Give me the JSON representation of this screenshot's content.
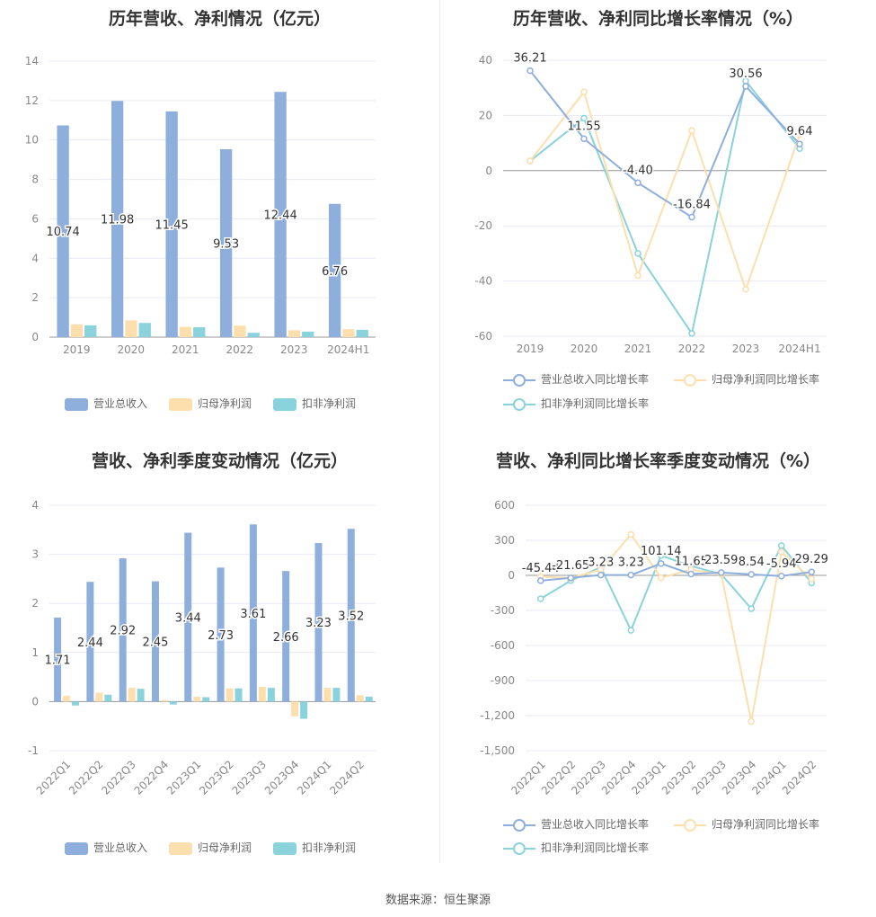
{
  "source_text": "数据来源：恒生聚源",
  "colors": {
    "revenue": "#8eaedc",
    "netprofit": "#fddfae",
    "deducted": "#8ad3dc",
    "grid": "#e8eaf4",
    "axis_text": "#888888",
    "label_text": "#333333"
  },
  "chart_data": [
    {
      "type": "bar",
      "title": "历年营收、净利情况（亿元）",
      "categories": [
        "2019",
        "2020",
        "2021",
        "2022",
        "2023",
        "2024H1"
      ],
      "series": [
        {
          "name": "营业总收入",
          "values": [
            10.74,
            11.98,
            11.45,
            9.53,
            12.44,
            6.76
          ],
          "labels": [
            "10.74",
            "11.98",
            "11.45",
            "9.53",
            "12.44",
            "6.76"
          ]
        },
        {
          "name": "归母净利润",
          "values": [
            0.65,
            0.85,
            0.52,
            0.58,
            0.35,
            0.4
          ]
        },
        {
          "name": "扣非净利润",
          "values": [
            0.6,
            0.72,
            0.5,
            0.22,
            0.28,
            0.37
          ]
        }
      ],
      "ylim": [
        0,
        14
      ],
      "yticks": [
        "0",
        "2",
        "4",
        "6",
        "8",
        "10",
        "12",
        "14"
      ],
      "legend": "bottom"
    },
    {
      "type": "line",
      "title": "历年营收、净利同比增长率情况（%）",
      "categories": [
        "2019",
        "2020",
        "2021",
        "2022",
        "2023",
        "2024H1"
      ],
      "series": [
        {
          "name": "营业总收入同比增长率",
          "values": [
            36.21,
            11.55,
            -4.4,
            -16.84,
            30.56,
            9.64
          ],
          "labels": [
            "36.21",
            "11.55",
            "-4.40",
            "-16.84",
            "30.56",
            "9.64"
          ]
        },
        {
          "name": "归母净利润同比增长率",
          "values": [
            3.5,
            28.5,
            -38,
            14.5,
            -43,
            13
          ]
        },
        {
          "name": "扣非净利润同比增长率",
          "values": [
            3.5,
            19,
            -30,
            -59,
            32.5,
            8
          ]
        }
      ],
      "ylim": [
        -60,
        40
      ],
      "yticks": [
        "40",
        "20",
        "0",
        "-20",
        "-40",
        "-60"
      ],
      "legend": "bottom"
    },
    {
      "type": "bar",
      "title": "营收、净利季度变动情况（亿元）",
      "categories": [
        "2022Q1",
        "2022Q2",
        "2022Q3",
        "2022Q4",
        "2023Q1",
        "2023Q2",
        "2023Q3",
        "2023Q4",
        "2024Q1",
        "2024Q2"
      ],
      "series": [
        {
          "name": "营业总收入",
          "values": [
            1.71,
            2.44,
            2.92,
            2.45,
            3.44,
            2.73,
            3.61,
            2.66,
            3.23,
            3.52
          ],
          "labels": [
            "1.71",
            "2.44",
            "2.92",
            "2.45",
            "3.44",
            "2.73",
            "3.61",
            "2.66",
            "3.23",
            "3.52"
          ]
        },
        {
          "name": "归母净利润",
          "values": [
            0.12,
            0.18,
            0.28,
            0.03,
            0.1,
            0.27,
            0.3,
            -0.3,
            0.28,
            0.13
          ]
        },
        {
          "name": "扣非净利润",
          "values": [
            -0.08,
            0.14,
            0.26,
            -0.06,
            0.09,
            0.27,
            0.28,
            -0.35,
            0.28,
            0.1
          ]
        }
      ],
      "ylim": [
        -1,
        4
      ],
      "yticks": [
        "4",
        "3",
        "2",
        "1",
        "0",
        "-1"
      ],
      "legend": "bottom"
    },
    {
      "type": "line",
      "title": "营收、净利同比增长率季度变动情况（%）",
      "categories": [
        "2022Q1",
        "2022Q2",
        "2022Q3",
        "2022Q4",
        "2023Q1",
        "2023Q2",
        "2023Q3",
        "2023Q4",
        "2024Q1",
        "2024Q2"
      ],
      "series": [
        {
          "name": "营业总收入同比增长率",
          "values": [
            -45.44,
            -21.65,
            3.23,
            3.23,
            101.14,
            11.65,
            23.59,
            8.54,
            -5.94,
            29.29
          ],
          "labels": [
            "-45.44",
            "-21.65",
            "3.23",
            "3.23",
            "101.14",
            "11.65",
            "23.59",
            "8.54",
            "-5.94",
            "29.29"
          ]
        },
        {
          "name": "归母净利润同比增长率",
          "values": [
            -10,
            -25,
            50,
            350,
            -20,
            50,
            10,
            -1250,
            200,
            -30
          ]
        },
        {
          "name": "扣非净利润同比增长率",
          "values": [
            -200,
            -45,
            70,
            -470,
            170,
            80,
            10,
            -285,
            255,
            -65
          ]
        }
      ],
      "ylim": [
        -1500,
        600
      ],
      "yticks": [
        "600",
        "300",
        "0",
        "-300",
        "-600",
        "-900",
        "-1,200",
        "-1,500"
      ],
      "legend": "bottom"
    }
  ]
}
